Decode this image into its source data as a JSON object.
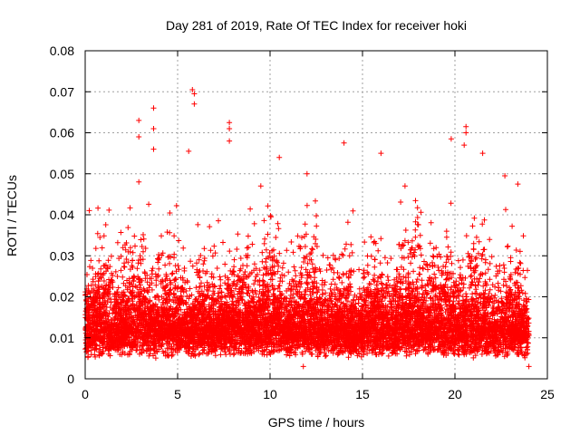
{
  "chart_data": {
    "type": "scatter",
    "title": "Day 281 of 2019, Rate Of TEC Index for receiver hoki",
    "xlabel": "GPS time / hours",
    "ylabel": "ROTI / TECUs",
    "xlim": [
      0,
      25
    ],
    "ylim": [
      0,
      0.08
    ],
    "xticks": [
      0,
      5,
      10,
      15,
      20,
      25
    ],
    "xtick_labels": [
      "0",
      "5",
      "10",
      "15",
      "20",
      "25"
    ],
    "yticks": [
      0,
      0.01,
      0.02,
      0.03,
      0.04,
      0.05,
      0.06,
      0.07,
      0.08
    ],
    "ytick_labels": [
      "0",
      "0.01",
      "0.02",
      "0.03",
      "0.04",
      "0.05",
      "0.06",
      "0.07",
      "0.08"
    ],
    "grid": true,
    "marker": "+",
    "series_color": "#ff0000",
    "series": [
      {
        "name": "ROTI",
        "x_range": [
          0,
          24
        ],
        "typical_range": [
          0.005,
          0.03
        ],
        "notable_points": [
          {
            "x": 2.9,
            "y": 0.063
          },
          {
            "x": 2.9,
            "y": 0.059
          },
          {
            "x": 3.7,
            "y": 0.066
          },
          {
            "x": 3.7,
            "y": 0.061
          },
          {
            "x": 3.7,
            "y": 0.056
          },
          {
            "x": 5.8,
            "y": 0.0705
          },
          {
            "x": 5.9,
            "y": 0.0695
          },
          {
            "x": 5.9,
            "y": 0.067
          },
          {
            "x": 5.6,
            "y": 0.0555
          },
          {
            "x": 7.8,
            "y": 0.0625
          },
          {
            "x": 7.8,
            "y": 0.061
          },
          {
            "x": 7.8,
            "y": 0.058
          },
          {
            "x": 10.5,
            "y": 0.054
          },
          {
            "x": 14.0,
            "y": 0.0575
          },
          {
            "x": 16.0,
            "y": 0.055
          },
          {
            "x": 19.8,
            "y": 0.0585
          },
          {
            "x": 20.6,
            "y": 0.0615
          },
          {
            "x": 20.6,
            "y": 0.06
          },
          {
            "x": 20.5,
            "y": 0.057
          },
          {
            "x": 21.5,
            "y": 0.055
          },
          {
            "x": 2.9,
            "y": 0.048
          },
          {
            "x": 12.0,
            "y": 0.05
          },
          {
            "x": 17.3,
            "y": 0.047
          },
          {
            "x": 23.4,
            "y": 0.0475
          },
          {
            "x": 22.7,
            "y": 0.0495
          },
          {
            "x": 9.5,
            "y": 0.047
          },
          {
            "x": 24.0,
            "y": 0.003
          },
          {
            "x": 11.8,
            "y": 0.003
          }
        ]
      }
    ]
  }
}
